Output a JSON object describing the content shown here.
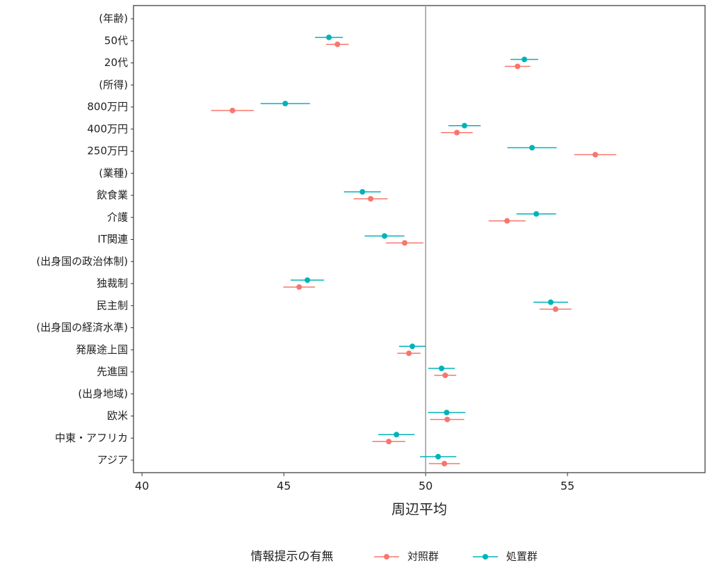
{
  "chart_data": {
    "type": "dotwhisker",
    "categories": [
      "(年齢)",
      "50代",
      "20代",
      "(所得)",
      "800万円",
      "400万円",
      "250万円",
      "(業種)",
      "飲食業",
      "介護",
      "IT関連",
      "(出身国の政治体制)",
      "独裁制",
      "民主制",
      "(出身国の経済水準)",
      "発展途上国",
      "先進国",
      "(出身地域)",
      "欧米",
      "中東・アフリカ",
      "アジア"
    ],
    "series": [
      {
        "name": "対照群",
        "color": "#f8766d",
        "values": [
          null,
          46.89,
          53.24,
          null,
          43.19,
          51.1,
          55.98,
          null,
          48.06,
          52.87,
          49.26,
          null,
          45.54,
          54.58,
          null,
          49.41,
          50.69,
          null,
          50.76,
          48.7,
          50.66
        ],
        "errors": [
          null,
          0.4,
          0.45,
          null,
          0.75,
          0.56,
          0.74,
          null,
          0.6,
          0.65,
          0.66,
          null,
          0.56,
          0.56,
          null,
          0.41,
          0.39,
          null,
          0.6,
          0.58,
          0.55
        ]
      },
      {
        "name": "処置群",
        "color": "#00b3b8",
        "values": [
          null,
          46.59,
          53.48,
          null,
          45.05,
          51.37,
          53.75,
          null,
          47.77,
          53.9,
          48.55,
          null,
          45.83,
          54.41,
          null,
          49.53,
          50.56,
          null,
          50.74,
          48.97,
          50.44
        ],
        "errors": [
          null,
          0.49,
          0.49,
          null,
          0.87,
          0.57,
          0.87,
          null,
          0.65,
          0.7,
          0.7,
          null,
          0.59,
          0.61,
          null,
          0.47,
          0.47,
          null,
          0.66,
          0.64,
          0.64
        ]
      }
    ],
    "xlim": [
      39.7,
      59.85
    ],
    "xticks": [
      40,
      45,
      50,
      55
    ],
    "refline": 50,
    "xlabel": "周辺平均",
    "legend_title": "情報提示の有無",
    "legend_position": "bottom"
  }
}
